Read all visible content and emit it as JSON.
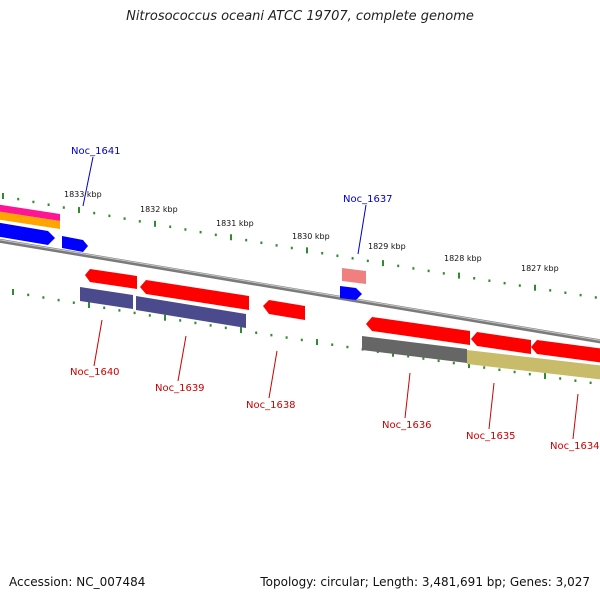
{
  "title": "Nitrosococcus oceani ATCC 19707, complete genome",
  "footer": {
    "accession": "Accession: NC_007484",
    "summary": "Topology: circular; Length: 3,481,691 bp; Genes: 3,027"
  },
  "colors": {
    "forward_gene": "#ff0000",
    "reverse_gene": "#ff0000",
    "label_top": "#0000cc",
    "label_bottom": "#cc0000",
    "tick": "#2e8b2e",
    "backbone": "#888888",
    "blue_feature": "#0000ff",
    "purple_feature": "#4b4a8c",
    "gray_feature": "#666666",
    "olive_feature": "#c8bc6a",
    "pink_feature": "#f08080",
    "orange_feature": "#ffa500",
    "magenta_feature": "#ff1493"
  },
  "scale_labels": [
    "1833 kbp",
    "1832 kbp",
    "1831 kbp",
    "1830 kbp",
    "1829 kbp",
    "1828 kbp",
    "1827 kbp"
  ],
  "gene_labels_top": [
    "Noc_1641",
    "Noc_1637"
  ],
  "gene_labels_bottom": [
    "Noc_1640",
    "Noc_1639",
    "Noc_1638",
    "Noc_1636",
    "Noc_1635",
    "Noc_1634"
  ]
}
